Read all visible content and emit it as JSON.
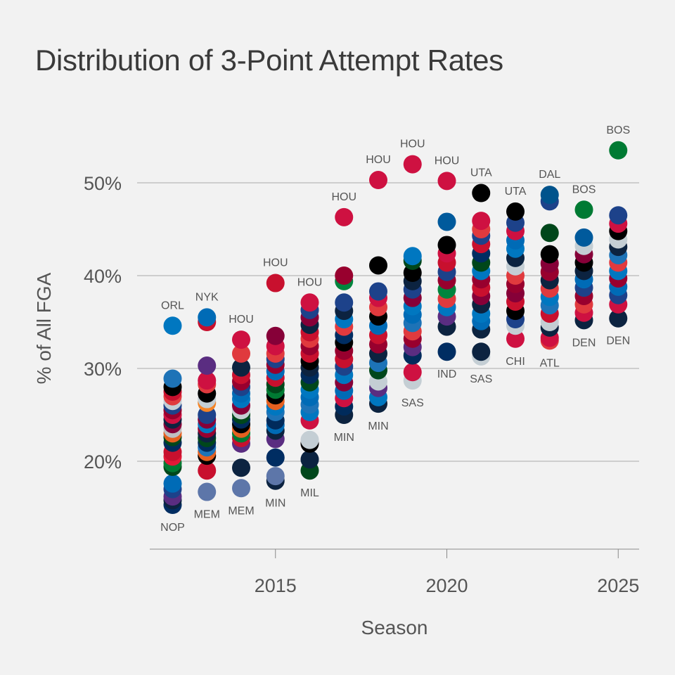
{
  "chart_data": {
    "type": "scatter",
    "title": "Distribution of 3-Point Attempt Rates",
    "xlabel": "Season",
    "ylabel": "% of All FGA",
    "xlim": [
      2011.1,
      2025.4
    ],
    "ylim": [
      9.5,
      58
    ],
    "x_ticks": [
      2015,
      2020,
      2025
    ],
    "y_ticks": [
      20,
      30,
      40,
      50
    ],
    "y_tick_format": "%",
    "grid": "horizontal",
    "seasons": [
      {
        "season": 2012,
        "values": [
          34.6,
          28.9,
          28.0,
          27.5,
          27.0,
          26.5,
          26.0,
          25.5,
          25.0,
          24.5,
          24.0,
          23.5,
          23.0,
          22.6,
          22.0,
          21.0,
          20.5,
          19.8,
          19.4,
          17.6,
          17.0,
          16.2,
          15.8,
          15.3
        ],
        "colors": [
          "#0077c0",
          "#1d73b7",
          "#000000",
          "#c8102e",
          "#e03a3e",
          "#c4ced4",
          "#1d428a",
          "#98002e",
          "#ce1141",
          "#0c2340",
          "#860038",
          "#bec0c2",
          "#e56020",
          "#00471b",
          "#002b5c",
          "#c8102e",
          "#e31837",
          "#007a33",
          "#00471b",
          "#006bb6",
          "#1d428a",
          "#5a2d81",
          "#0c2340",
          "#002d62"
        ]
      },
      {
        "season": 2013,
        "values": [
          35.5,
          35.0,
          30.3,
          28.7,
          28.3,
          27.3,
          26.7,
          26.3,
          25.0,
          24.5,
          24.0,
          23.5,
          23.0,
          22.5,
          22.0,
          21.5,
          21.0,
          20.6,
          19.0,
          16.7
        ],
        "colors": [
          "#006bb6",
          "#c8102e",
          "#5a2d81",
          "#ce1141",
          "#e03a3e",
          "#000000",
          "#c4ced4",
          "#f58426",
          "#1d428a",
          "#860038",
          "#0077c0",
          "#98002e",
          "#0c2340",
          "#00471b",
          "#002b5c",
          "#1d73b7",
          "#e56020",
          "#000000",
          "#c8102e",
          "#5d76a9"
        ]
      },
      {
        "season": 2014,
        "values": [
          33.1,
          31.6,
          30.1,
          29.3,
          28.6,
          28.0,
          27.3,
          26.7,
          26.0,
          25.5,
          25.0,
          24.5,
          24.0,
          23.5,
          23.0,
          22.5,
          21.9,
          19.3,
          17.1
        ],
        "colors": [
          "#ce1141",
          "#e03a3e",
          "#0c2340",
          "#c8102e",
          "#98002e",
          "#1d428a",
          "#006bb6",
          "#0077c0",
          "#860038",
          "#c4ced4",
          "#00471b",
          "#002b5c",
          "#000000",
          "#e56020",
          "#007a33",
          "#c8102e",
          "#5a2d81",
          "#0c2340",
          "#5d76a9"
        ]
      },
      {
        "season": 2015,
        "values": [
          39.2,
          33.5,
          32.4,
          31.6,
          31.0,
          30.4,
          29.7,
          29.0,
          28.3,
          27.7,
          27.1,
          26.5,
          25.9,
          25.3,
          24.4,
          23.9,
          23.3,
          22.4,
          20.4,
          18.4,
          17.9
        ],
        "colors": [
          "#c8102e",
          "#860038",
          "#ce1141",
          "#e03a3e",
          "#1d428a",
          "#98002e",
          "#006bb6",
          "#c8102e",
          "#00471b",
          "#007a33",
          "#000000",
          "#e56020",
          "#0077c0",
          "#1d73b7",
          "#002b5c",
          "#006bb6",
          "#0c2340",
          "#5a2d81",
          "#002d62",
          "#5d76a9",
          "#0c2340"
        ]
      },
      {
        "season": 2016,
        "values": [
          37.1,
          36.3,
          35.5,
          34.7,
          33.9,
          33.2,
          32.4,
          31.6,
          30.8,
          30.1,
          29.3,
          28.5,
          27.7,
          26.9,
          26.1,
          25.3,
          24.4,
          22.3,
          21.9,
          20.2,
          19.0
        ],
        "colors": [
          "#ce1141",
          "#1d428a",
          "#860038",
          "#0c2340",
          "#c8102e",
          "#e03a3e",
          "#98002e",
          "#c8102e",
          "#000000",
          "#0c2340",
          "#002b5c",
          "#00471b",
          "#0077c0",
          "#006bb6",
          "#1d73b7",
          "#0077c0",
          "#ce1141",
          "#c4ced4",
          "#000000",
          "#0c2340",
          "#00471b"
        ]
      },
      {
        "season": 2017,
        "values": [
          46.3,
          40.0,
          39.4,
          37.1,
          36.2,
          35.3,
          34.5,
          33.6,
          32.8,
          31.9,
          31.0,
          30.2,
          29.3,
          28.5,
          27.6,
          26.8,
          25.9,
          25.0
        ],
        "colors": [
          "#ce1141",
          "#98002e",
          "#00853e",
          "#1d428a",
          "#0c2340",
          "#0077c0",
          "#e03a3e",
          "#002d62",
          "#000000",
          "#98002e",
          "#c8102e",
          "#1d428a",
          "#0077c0",
          "#860038",
          "#006bb6",
          "#ce1141",
          "#002b5c",
          "#0c2340"
        ]
      },
      {
        "season": 2018,
        "values": [
          50.3,
          41.1,
          38.3,
          37.6,
          36.6,
          35.6,
          34.6,
          33.6,
          32.6,
          31.6,
          30.6,
          29.8,
          28.6,
          27.9,
          26.9,
          26.2
        ],
        "colors": [
          "#ce1141",
          "#000000",
          "#1d428a",
          "#ce1141",
          "#e03a3e",
          "#000000",
          "#006bb6",
          "#c8102e",
          "#98002e",
          "#0c2340",
          "#1d73b7",
          "#00471b",
          "#c4ced4",
          "#5a2d81",
          "#0077c0",
          "#0c2340"
        ]
      },
      {
        "season": 2019,
        "values": [
          52.0,
          42.1,
          41.6,
          40.3,
          39.4,
          38.5,
          37.6,
          36.7,
          35.8,
          34.9,
          34.0,
          33.2,
          32.3,
          31.4,
          29.6,
          28.7
        ],
        "colors": [
          "#ce1141",
          "#0077c0",
          "#00471b",
          "#000000",
          "#0c2340",
          "#1d428a",
          "#860038",
          "#0077c0",
          "#006bb6",
          "#1d73b7",
          "#e03a3e",
          "#98002e",
          "#5a2d81",
          "#002b5c",
          "#ce1141",
          "#c4ced4"
        ]
      },
      {
        "season": 2020,
        "values": [
          50.2,
          45.8,
          43.3,
          42.4,
          41.4,
          40.4,
          39.5,
          38.5,
          37.5,
          36.6,
          35.6,
          34.5,
          31.8
        ],
        "colors": [
          "#ce1141",
          "#005a9c",
          "#000000",
          "#ce1141",
          "#c8102e",
          "#1d428a",
          "#98002e",
          "#00853e",
          "#e03a3e",
          "#0077c0",
          "#5a2d81",
          "#0c2340",
          "#002d62"
        ]
      },
      {
        "season": 2021,
        "values": [
          48.9,
          45.9,
          45.0,
          44.3,
          43.4,
          42.4,
          41.4,
          40.5,
          39.6,
          38.7,
          37.8,
          36.9,
          35.9,
          35.1,
          34.2,
          31.8,
          31.3
        ],
        "colors": [
          "#000000",
          "#ce1141",
          "#e03a3e",
          "#1d428a",
          "#c8102e",
          "#002d62",
          "#00471b",
          "#0077c0",
          "#98002e",
          "#c8102e",
          "#860038",
          "#0c2340",
          "#0077c0",
          "#006bb6",
          "#0c2340",
          "#0c2340",
          "#c4ced4"
        ]
      },
      {
        "season": 2022,
        "values": [
          46.9,
          45.7,
          44.8,
          43.8,
          42.9,
          41.9,
          41.0,
          40.0,
          39.1,
          38.1,
          37.2,
          36.2,
          35.3,
          34.6,
          33.2
        ],
        "colors": [
          "#000000",
          "#1d428a",
          "#ce1141",
          "#006bb6",
          "#0077c0",
          "#0c2340",
          "#c4ced4",
          "#e03a3e",
          "#98002e",
          "#860038",
          "#c8102e",
          "#000000",
          "#1d428a",
          "#c4ced4",
          "#ce1141"
        ]
      },
      {
        "season": 2023,
        "values": [
          48.7,
          48.0,
          44.6,
          42.3,
          41.3,
          40.4,
          39.5,
          38.6,
          37.7,
          36.8,
          35.9,
          35.0,
          34.4,
          33.3,
          33.0
        ],
        "colors": [
          "#00538c",
          "#1d428a",
          "#00471b",
          "#000000",
          "#860038",
          "#98002e",
          "#0c2340",
          "#e03a3e",
          "#0077c0",
          "#1d73b7",
          "#c8102e",
          "#c4ced4",
          "#0c2340",
          "#ce1141",
          "#e03a3e"
        ]
      },
      {
        "season": 2024,
        "values": [
          47.1,
          44.1,
          43.2,
          42.3,
          41.4,
          40.5,
          39.6,
          38.7,
          37.8,
          36.9,
          36.0,
          35.2
        ],
        "colors": [
          "#007a33",
          "#005a9c",
          "#c4ced4",
          "#860038",
          "#000000",
          "#0c2340",
          "#006bb6",
          "#1d428a",
          "#98002e",
          "#e03a3e",
          "#ce1141",
          "#0c2340"
        ]
      },
      {
        "season": 2025,
        "values": [
          53.5,
          46.5,
          45.6,
          44.8,
          43.9,
          43.1,
          42.2,
          41.4,
          40.5,
          39.7,
          38.8,
          37.9,
          36.9,
          35.4
        ],
        "colors": [
          "#007a33",
          "#1d428a",
          "#ce1141",
          "#000000",
          "#c4ced4",
          "#0c2340",
          "#1d73b7",
          "#e03a3e",
          "#0077c0",
          "#98002e",
          "#006bb6",
          "#1d428a",
          "#ce1141",
          "#0c2340"
        ]
      }
    ],
    "annotations": [
      {
        "text": "ORL",
        "x": 2012,
        "y": 34.6,
        "pos": "above"
      },
      {
        "text": "NOP",
        "x": 2012,
        "y": 15.3,
        "pos": "below"
      },
      {
        "text": "NYK",
        "x": 2013,
        "y": 35.5,
        "pos": "above"
      },
      {
        "text": "MEM",
        "x": 2013,
        "y": 16.7,
        "pos": "below"
      },
      {
        "text": "HOU",
        "x": 2014,
        "y": 33.1,
        "pos": "above"
      },
      {
        "text": "MEM",
        "x": 2014,
        "y": 17.1,
        "pos": "below"
      },
      {
        "text": "HOU",
        "x": 2015,
        "y": 39.2,
        "pos": "above"
      },
      {
        "text": "MIN",
        "x": 2015,
        "y": 17.9,
        "pos": "below"
      },
      {
        "text": "HOU",
        "x": 2016,
        "y": 37.1,
        "pos": "above"
      },
      {
        "text": "MIL",
        "x": 2016,
        "y": 19.0,
        "pos": "below"
      },
      {
        "text": "HOU",
        "x": 2017,
        "y": 46.3,
        "pos": "above"
      },
      {
        "text": "MIN",
        "x": 2017,
        "y": 25.0,
        "pos": "below"
      },
      {
        "text": "HOU",
        "x": 2018,
        "y": 50.3,
        "pos": "above"
      },
      {
        "text": "MIN",
        "x": 2018,
        "y": 26.2,
        "pos": "below"
      },
      {
        "text": "HOU",
        "x": 2019,
        "y": 52.0,
        "pos": "above"
      },
      {
        "text": "SAS",
        "x": 2019,
        "y": 28.7,
        "pos": "below"
      },
      {
        "text": "HOU",
        "x": 2020,
        "y": 50.2,
        "pos": "above"
      },
      {
        "text": "IND",
        "x": 2020,
        "y": 31.8,
        "pos": "below"
      },
      {
        "text": "UTA",
        "x": 2021,
        "y": 48.9,
        "pos": "above"
      },
      {
        "text": "SAS",
        "x": 2021,
        "y": 31.3,
        "pos": "below"
      },
      {
        "text": "UTA",
        "x": 2022,
        "y": 46.9,
        "pos": "above"
      },
      {
        "text": "CHI",
        "x": 2022,
        "y": 33.2,
        "pos": "below"
      },
      {
        "text": "DAL",
        "x": 2023,
        "y": 48.7,
        "pos": "above"
      },
      {
        "text": "ATL",
        "x": 2023,
        "y": 33.0,
        "pos": "below"
      },
      {
        "text": "BOS",
        "x": 2024,
        "y": 47.1,
        "pos": "above"
      },
      {
        "text": "DEN",
        "x": 2024,
        "y": 35.2,
        "pos": "below"
      },
      {
        "text": "BOS",
        "x": 2025,
        "y": 53.5,
        "pos": "above"
      },
      {
        "text": "DEN",
        "x": 2025,
        "y": 35.4,
        "pos": "below"
      }
    ],
    "colors": {
      "background": "#f2f2f2",
      "grid": "#a9a9a9",
      "axis": "#8a8a8a",
      "text": "#555555",
      "title": "#3a3a3a"
    }
  }
}
